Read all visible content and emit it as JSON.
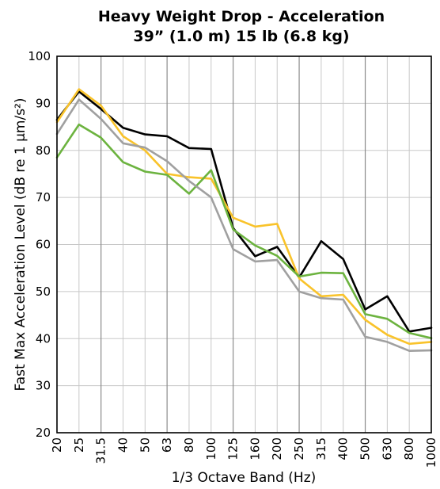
{
  "chart_data": {
    "type": "line",
    "title": "Heavy Weight Drop - Acceleration",
    "subtitle": "39” (1.0 m) 15 lb (6.8 kg)",
    "xlabel": "1/3 Octave Band (Hz)",
    "ylabel": "Fast Max Acceleration Level (dB re 1 µm/s²)",
    "ylim": [
      20,
      100
    ],
    "yticks": [
      20,
      30,
      40,
      50,
      60,
      70,
      80,
      90,
      100
    ],
    "categories": [
      "20",
      "25",
      "31.5",
      "40",
      "50",
      "63",
      "80",
      "100",
      "125",
      "160",
      "200",
      "250",
      "315",
      "400",
      "500",
      "630",
      "800",
      "1000"
    ],
    "grid": true,
    "series": [
      {
        "color": "#000000",
        "values": [
          86.5,
          92.5,
          88.8,
          84.8,
          83.4,
          83.0,
          80.5,
          80.3,
          63.5,
          57.5,
          59.5,
          53.0,
          60.7,
          56.9,
          46.2,
          49.0,
          41.5,
          42.3
        ]
      },
      {
        "color": "#F9C32B",
        "values": [
          86.0,
          93.0,
          89.5,
          83.0,
          80.0,
          75.0,
          74.3,
          74.0,
          65.7,
          63.8,
          64.4,
          52.8,
          49.0,
          49.3,
          44.0,
          40.8,
          38.9,
          39.3
        ]
      },
      {
        "color": "#6CB33F",
        "values": [
          78.5,
          85.5,
          82.7,
          77.5,
          75.5,
          74.8,
          70.8,
          75.8,
          63.2,
          59.8,
          57.6,
          53.2,
          54.0,
          53.9,
          45.2,
          44.2,
          41.2,
          40.1
        ]
      },
      {
        "color": "#A0A0A0",
        "values": [
          83.5,
          90.8,
          86.7,
          81.5,
          80.6,
          77.7,
          73.5,
          70.0,
          59.0,
          56.4,
          56.7,
          50.0,
          48.6,
          48.3,
          40.4,
          39.3,
          37.4,
          37.5
        ]
      }
    ]
  }
}
